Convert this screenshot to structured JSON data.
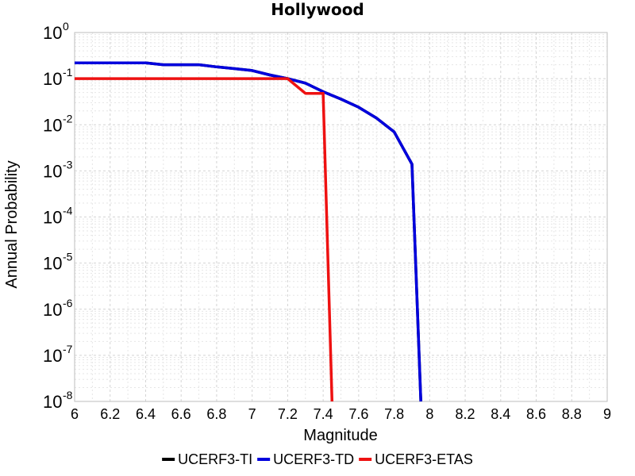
{
  "chart_data": {
    "type": "line",
    "title": "Hollywood",
    "xlabel": "Magnitude",
    "ylabel": "Annual Probability",
    "xlim": [
      6,
      9
    ],
    "ylim": [
      1e-08,
      1
    ],
    "yscale": "log",
    "x_ticks": [
      "6",
      "6.2",
      "6.4",
      "6.6",
      "6.8",
      "7",
      "7.2",
      "7.4",
      "7.6",
      "7.8",
      "8",
      "8.2",
      "8.4",
      "8.6",
      "8.8",
      "9"
    ],
    "y_tick_base": "10",
    "y_tick_exponents": [
      "-8",
      "-7",
      "-6",
      "-5",
      "-4",
      "-3",
      "-2",
      "-1",
      "0"
    ],
    "grid": true,
    "legend_position": "bottom",
    "series": [
      {
        "name": "UCERF3-TI",
        "color": "#000000",
        "x": [
          6.0,
          6.1,
          6.2,
          6.3,
          6.4,
          6.5,
          6.6,
          6.7,
          6.8,
          6.9,
          7.0,
          7.1,
          7.2,
          7.3,
          7.4,
          7.5,
          7.6,
          7.7,
          7.8,
          7.9,
          7.95
        ],
        "y": [
          0.22,
          0.22,
          0.22,
          0.22,
          0.22,
          0.2,
          0.2,
          0.2,
          0.18,
          0.165,
          0.15,
          0.12,
          0.1,
          0.08,
          0.052,
          0.036,
          0.024,
          0.014,
          0.007,
          0.0014,
          1e-08
        ]
      },
      {
        "name": "UCERF3-TD",
        "color": "#0000dd",
        "x": [
          6.0,
          6.1,
          6.2,
          6.3,
          6.4,
          6.5,
          6.6,
          6.7,
          6.8,
          6.9,
          7.0,
          7.1,
          7.2,
          7.3,
          7.4,
          7.5,
          7.6,
          7.7,
          7.8,
          7.9,
          7.95
        ],
        "y": [
          0.22,
          0.22,
          0.22,
          0.22,
          0.22,
          0.2,
          0.2,
          0.2,
          0.18,
          0.165,
          0.15,
          0.12,
          0.1,
          0.08,
          0.052,
          0.036,
          0.024,
          0.014,
          0.007,
          0.0014,
          1e-08
        ]
      },
      {
        "name": "UCERF3-ETAS",
        "color": "#ee1111",
        "x": [
          6.0,
          7.2,
          7.3,
          7.4,
          7.45
        ],
        "y": [
          0.1,
          0.1,
          0.048,
          0.048,
          1e-08
        ]
      }
    ]
  }
}
